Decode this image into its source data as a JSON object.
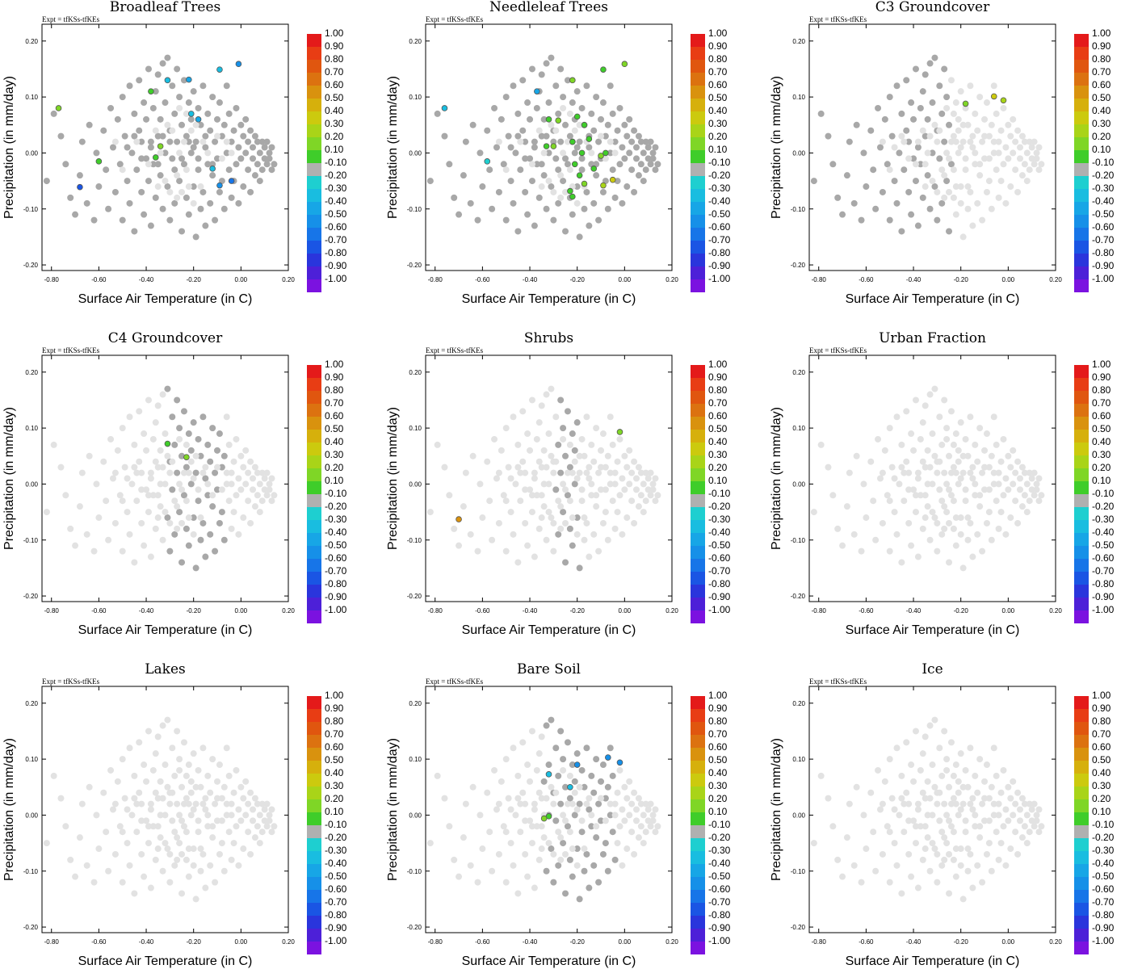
{
  "chart_data": {
    "type": "scatter",
    "figure": "3x3 panel scatter of vegetation-fraction correlation vs climate response",
    "shared": {
      "annotation": "Expt = tfKSs-tfKEs",
      "xlabel": "Surface Air Temperature (in C)",
      "ylabel": "Precipitation (in mm/day)",
      "xlim": [
        -0.84,
        0.2
      ],
      "ylim": [
        -0.21,
        0.23
      ],
      "xticks": [
        "-0.80",
        "-0.60",
        "-0.40",
        "-0.20",
        "0.00",
        "0.20"
      ],
      "yticks": [
        "0.20",
        "0.10",
        "0.00",
        "-0.10",
        "-0.20"
      ],
      "colorbar": {
        "labels": [
          "1.00",
          "0.90",
          "0.80",
          "0.70",
          "0.60",
          "0.50",
          "0.40",
          "0.30",
          "0.20",
          "0.10",
          "-0.10",
          "-0.20",
          "-0.30",
          "-0.40",
          "-0.50",
          "-0.60",
          "-0.70",
          "-0.80",
          "-0.90",
          "-1.00"
        ],
        "colors": [
          "#e41a1a",
          "#e83d14",
          "#e0560f",
          "#dc7210",
          "#d9920e",
          "#d6b00c",
          "#ccca0e",
          "#a9d418",
          "#7fd626",
          "#3fcd2a",
          "#b0b0b0",
          "#1ecfd0",
          "#19bde0",
          "#17a6e6",
          "#1690e8",
          "#1775e8",
          "#1a55e4",
          "#2a35dc",
          "#4d20d8",
          "#7b12e0"
        ]
      },
      "background_points": [
        [
          -0.82,
          -0.05
        ],
        [
          -0.79,
          0.07
        ],
        [
          -0.76,
          0.03
        ],
        [
          -0.74,
          -0.02
        ],
        [
          -0.72,
          -0.08
        ],
        [
          -0.7,
          -0.11
        ],
        [
          -0.68,
          -0.04
        ],
        [
          -0.67,
          0.02
        ],
        [
          -0.65,
          -0.09
        ],
        [
          -0.64,
          0.05
        ],
        [
          -0.62,
          -0.12
        ],
        [
          -0.61,
          0.0
        ],
        [
          -0.6,
          -0.06
        ],
        [
          -0.58,
          0.04
        ],
        [
          -0.57,
          -0.03
        ],
        [
          -0.56,
          -0.1
        ],
        [
          -0.55,
          0.08
        ],
        [
          -0.54,
          0.01
        ],
        [
          -0.53,
          -0.07
        ],
        [
          -0.52,
          0.06
        ],
        [
          -0.51,
          -0.02
        ],
        [
          -0.5,
          0.1
        ],
        [
          -0.5,
          -0.12
        ],
        [
          -0.49,
          0.03
        ],
        [
          -0.48,
          -0.05
        ],
        [
          -0.47,
          0.12
        ],
        [
          -0.47,
          -0.09
        ],
        [
          -0.46,
          0.0
        ],
        [
          -0.45,
          0.07
        ],
        [
          -0.45,
          -0.14
        ],
        [
          -0.44,
          -0.03
        ],
        [
          -0.43,
          0.04
        ],
        [
          -0.43,
          0.13
        ],
        [
          -0.42,
          -0.07
        ],
        [
          -0.42,
          0.02
        ],
        [
          -0.41,
          0.09
        ],
        [
          -0.41,
          -0.11
        ],
        [
          -0.4,
          -0.01
        ],
        [
          -0.4,
          0.06
        ],
        [
          -0.39,
          0.15
        ],
        [
          -0.39,
          -0.05
        ],
        [
          -0.38,
          0.01
        ],
        [
          -0.38,
          -0.13
        ],
        [
          -0.37,
          0.08
        ],
        [
          -0.37,
          -0.02
        ],
        [
          -0.36,
          0.11
        ],
        [
          -0.36,
          -0.08
        ],
        [
          -0.35,
          0.03
        ],
        [
          -0.35,
          0.14
        ],
        [
          -0.34,
          -0.04
        ],
        [
          -0.34,
          0.06
        ],
        [
          -0.33,
          -0.1
        ],
        [
          -0.33,
          0.16
        ],
        [
          -0.32,
          0.0
        ],
        [
          -0.32,
          0.09
        ],
        [
          -0.31,
          -0.06
        ],
        [
          -0.31,
          0.17
        ],
        [
          -0.3,
          0.04
        ],
        [
          -0.3,
          -0.12
        ],
        [
          -0.29,
          0.12
        ],
        [
          -0.29,
          -0.01
        ],
        [
          -0.28,
          0.07
        ],
        [
          -0.28,
          -0.09
        ],
        [
          -0.27,
          0.15
        ],
        [
          -0.27,
          0.02
        ],
        [
          -0.26,
          -0.05
        ],
        [
          -0.26,
          0.1
        ],
        [
          -0.25,
          -0.14
        ],
        [
          -0.25,
          0.05
        ],
        [
          -0.24,
          -0.02
        ],
        [
          -0.24,
          0.13
        ],
        [
          -0.23,
          -0.08
        ],
        [
          -0.23,
          0.03
        ],
        [
          -0.22,
          0.09
        ],
        [
          -0.22,
          -0.11
        ],
        [
          -0.21,
          0.0
        ],
        [
          -0.21,
          0.06
        ],
        [
          -0.2,
          -0.06
        ],
        [
          -0.2,
          0.11
        ],
        [
          -0.19,
          -0.15
        ],
        [
          -0.19,
          0.02
        ],
        [
          -0.18,
          0.08
        ],
        [
          -0.18,
          -0.03
        ],
        [
          -0.17,
          -0.1
        ],
        [
          -0.17,
          0.05
        ],
        [
          -0.16,
          0.12
        ],
        [
          -0.16,
          -0.07
        ],
        [
          -0.15,
          0.01
        ],
        [
          -0.15,
          -0.13
        ],
        [
          -0.14,
          0.07
        ],
        [
          -0.14,
          -0.02
        ],
        [
          -0.13,
          0.04
        ],
        [
          -0.13,
          -0.09
        ],
        [
          -0.12,
          0.1
        ],
        [
          -0.12,
          -0.04
        ],
        [
          -0.11,
          0.02
        ],
        [
          -0.11,
          -0.12
        ],
        [
          -0.1,
          0.06
        ],
        [
          -0.1,
          -0.01
        ],
        [
          -0.09,
          -0.07
        ],
        [
          -0.09,
          0.09
        ],
        [
          -0.08,
          0.03
        ],
        [
          -0.08,
          -0.05
        ],
        [
          -0.07,
          0.05
        ],
        [
          -0.07,
          -0.1
        ],
        [
          -0.06,
          0.0
        ],
        [
          -0.06,
          0.12
        ],
        [
          -0.05,
          -0.03
        ],
        [
          -0.05,
          0.07
        ],
        [
          -0.04,
          -0.08
        ],
        [
          -0.04,
          0.02
        ],
        [
          -0.03,
          0.04
        ],
        [
          -0.03,
          -0.05
        ],
        [
          -0.02,
          0.08
        ],
        [
          -0.02,
          -0.02
        ],
        [
          -0.01,
          0.01
        ],
        [
          -0.01,
          -0.09
        ],
        [
          0.0,
          0.05
        ],
        [
          0.0,
          -0.01
        ],
        [
          0.01,
          0.03
        ],
        [
          0.01,
          -0.06
        ],
        [
          0.02,
          0.0
        ],
        [
          0.02,
          0.06
        ],
        [
          0.03,
          -0.03
        ],
        [
          0.03,
          0.02
        ],
        [
          0.04,
          -0.07
        ],
        [
          0.04,
          0.04
        ],
        [
          0.05,
          -0.01
        ],
        [
          0.05,
          0.01
        ],
        [
          0.06,
          -0.04
        ],
        [
          0.06,
          0.03
        ],
        [
          0.07,
          -0.02
        ],
        [
          0.07,
          0.02
        ],
        [
          0.08,
          -0.05
        ],
        [
          0.08,
          0.0
        ],
        [
          0.09,
          0.02
        ],
        [
          0.09,
          -0.03
        ],
        [
          0.1,
          -0.01
        ],
        [
          0.1,
          0.01
        ],
        [
          0.11,
          -0.02
        ],
        [
          0.11,
          0.02
        ],
        [
          0.12,
          -0.01
        ],
        [
          0.12,
          0.0
        ],
        [
          0.13,
          -0.03
        ],
        [
          0.13,
          0.01
        ],
        [
          0.14,
          -0.02
        ],
        [
          -0.35,
          -0.02
        ],
        [
          -0.3,
          0.02
        ],
        [
          -0.25,
          -0.01
        ],
        [
          -0.2,
          0.01
        ],
        [
          -0.33,
          0.03
        ],
        [
          -0.28,
          -0.03
        ],
        [
          -0.22,
          0.02
        ],
        [
          -0.18,
          -0.01
        ],
        [
          -0.15,
          0.03
        ],
        [
          -0.12,
          -0.02
        ],
        [
          -0.38,
          0.02
        ],
        [
          -0.42,
          -0.01
        ],
        [
          -0.45,
          0.03
        ],
        [
          -0.48,
          0.01
        ],
        [
          -0.26,
          0.0
        ],
        [
          -0.24,
          0.02
        ],
        [
          -0.27,
          -0.04
        ],
        [
          -0.23,
          -0.03
        ],
        [
          -0.31,
          0.05
        ],
        [
          -0.29,
          0.04
        ],
        [
          -0.21,
          0.04
        ],
        [
          -0.19,
          0.05
        ],
        [
          -0.34,
          0.0
        ],
        [
          -0.36,
          0.04
        ],
        [
          -0.16,
          0.02
        ],
        [
          -0.14,
          0.0
        ],
        [
          -0.1,
          0.03
        ],
        [
          -0.08,
          -0.01
        ],
        [
          -0.06,
          0.02
        ],
        [
          -0.04,
          0.0
        ],
        [
          -0.39,
          -0.02
        ],
        [
          -0.44,
          0.02
        ],
        [
          -0.5,
          -0.03
        ],
        [
          -0.53,
          0.02
        ],
        [
          -0.25,
          -0.07
        ],
        [
          -0.22,
          -0.06
        ],
        [
          -0.3,
          -0.07
        ],
        [
          -0.27,
          -0.08
        ],
        [
          -0.2,
          -0.09
        ],
        [
          -0.17,
          -0.06
        ],
        [
          -0.32,
          -0.05
        ],
        [
          -0.35,
          -0.06
        ],
        [
          -0.23,
          0.07
        ],
        [
          -0.26,
          0.08
        ]
      ]
    },
    "panels": [
      {
        "title": "Broadleaf Trees",
        "highlight_from": 0,
        "highlight_to": 160,
        "points": [
          {
            "x": -0.77,
            "y": 0.08,
            "r": 0.2
          },
          {
            "x": -0.6,
            "y": -0.015,
            "r": 0.1
          },
          {
            "x": -0.38,
            "y": 0.11,
            "r": 0.1
          },
          {
            "x": -0.34,
            "y": 0.012,
            "r": 0.2
          },
          {
            "x": -0.36,
            "y": -0.008,
            "r": 0.1
          },
          {
            "x": -0.68,
            "y": -0.061,
            "r": -0.7
          },
          {
            "x": -0.31,
            "y": 0.13,
            "r": -0.3
          },
          {
            "x": -0.22,
            "y": 0.131,
            "r": -0.4
          },
          {
            "x": -0.09,
            "y": 0.149,
            "r": -0.3
          },
          {
            "x": -0.01,
            "y": 0.159,
            "r": -0.5
          },
          {
            "x": -0.04,
            "y": -0.05,
            "r": -0.6
          },
          {
            "x": -0.09,
            "y": -0.058,
            "r": -0.5
          },
          {
            "x": -0.12,
            "y": -0.028,
            "r": -0.3
          },
          {
            "x": -0.21,
            "y": 0.07,
            "r": -0.3
          },
          {
            "x": -0.18,
            "y": 0.06,
            "r": -0.4
          }
        ]
      },
      {
        "title": "Needleleaf Trees",
        "highlight_from": 0,
        "highlight_to": 160,
        "points": [
          {
            "x": -0.76,
            "y": 0.08,
            "r": -0.3
          },
          {
            "x": -0.58,
            "y": -0.015,
            "r": -0.2
          },
          {
            "x": -0.37,
            "y": 0.11,
            "r": -0.4
          },
          {
            "x": -0.22,
            "y": 0.13,
            "r": 0.2
          },
          {
            "x": -0.09,
            "y": 0.149,
            "r": 0.1
          },
          {
            "x": 0.0,
            "y": 0.159,
            "r": 0.2
          },
          {
            "x": -0.32,
            "y": 0.06,
            "r": 0.1
          },
          {
            "x": -0.28,
            "y": 0.058,
            "r": 0.2
          },
          {
            "x": -0.2,
            "y": 0.065,
            "r": 0.1
          },
          {
            "x": -0.17,
            "y": 0.05,
            "r": 0.1
          },
          {
            "x": -0.33,
            "y": 0.012,
            "r": 0.1
          },
          {
            "x": -0.3,
            "y": 0.012,
            "r": 0.2
          },
          {
            "x": -0.22,
            "y": 0.02,
            "r": 0.1
          },
          {
            "x": -0.18,
            "y": 0.0,
            "r": 0.1
          },
          {
            "x": -0.1,
            "y": -0.005,
            "r": 0.2
          },
          {
            "x": -0.08,
            "y": 0.0,
            "r": 0.1
          },
          {
            "x": -0.21,
            "y": -0.02,
            "r": 0.1
          },
          {
            "x": -0.19,
            "y": -0.04,
            "r": 0.1
          },
          {
            "x": -0.13,
            "y": -0.028,
            "r": 0.1
          },
          {
            "x": -0.05,
            "y": -0.048,
            "r": 0.4
          },
          {
            "x": -0.09,
            "y": -0.058,
            "r": 0.3
          },
          {
            "x": -0.23,
            "y": -0.068,
            "r": 0.1
          },
          {
            "x": -0.22,
            "y": -0.078,
            "r": 0.1
          },
          {
            "x": -0.17,
            "y": -0.055,
            "r": 0.2
          },
          {
            "x": -0.15,
            "y": 0.025,
            "r": 0.1
          }
        ]
      },
      {
        "title": "C3 Groundcover",
        "highlight_from": 0,
        "highlight_to": 70,
        "points": [
          {
            "x": -0.18,
            "y": 0.088,
            "r": 0.2
          },
          {
            "x": -0.06,
            "y": 0.101,
            "r": 0.4
          },
          {
            "x": -0.02,
            "y": 0.094,
            "r": 0.3
          }
        ]
      },
      {
        "title": "C4 Groundcover",
        "highlight_from": 55,
        "highlight_to": 105,
        "points": [
          {
            "x": -0.31,
            "y": 0.072,
            "r": 0.1
          },
          {
            "x": -0.23,
            "y": 0.048,
            "r": 0.2
          }
        ]
      },
      {
        "title": "Shrubs",
        "highlight_from": 60,
        "highlight_to": 80,
        "points": [
          {
            "x": -0.7,
            "y": -0.063,
            "r": 0.6
          },
          {
            "x": -0.02,
            "y": 0.093,
            "r": 0.2
          }
        ]
      },
      {
        "title": "Urban Fraction",
        "highlight_from": 0,
        "highlight_to": 0,
        "points": []
      },
      {
        "title": "Lakes",
        "highlight_from": 0,
        "highlight_to": 0,
        "points": []
      },
      {
        "title": "Bare Soil",
        "highlight_from": 50,
        "highlight_to": 110,
        "points": [
          {
            "x": -0.32,
            "y": 0.073,
            "r": -0.3
          },
          {
            "x": -0.23,
            "y": 0.05,
            "r": -0.3
          },
          {
            "x": -0.2,
            "y": 0.09,
            "r": -0.5
          },
          {
            "x": -0.07,
            "y": 0.103,
            "r": -0.5
          },
          {
            "x": -0.02,
            "y": 0.094,
            "r": -0.5
          },
          {
            "x": -0.32,
            "y": -0.002,
            "r": 0.1
          },
          {
            "x": -0.34,
            "y": -0.006,
            "r": 0.2
          }
        ]
      },
      {
        "title": "Ice",
        "highlight_from": 0,
        "highlight_to": 0,
        "points": []
      }
    ]
  }
}
